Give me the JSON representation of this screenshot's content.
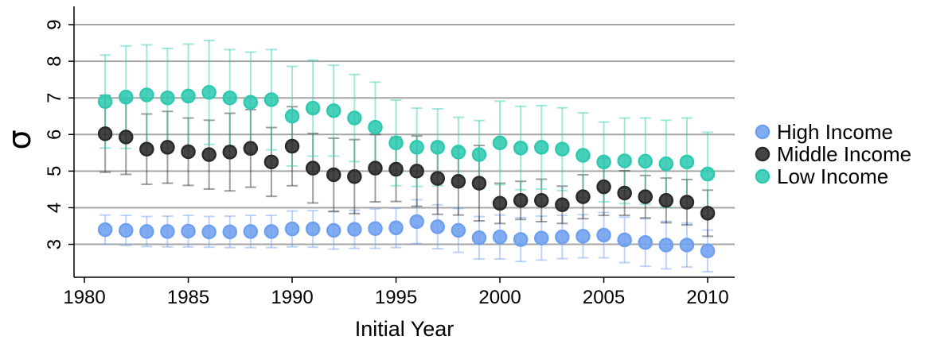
{
  "chart_data": {
    "type": "scatter",
    "xlabel": "Initial Year",
    "ylabel": "σ",
    "xlim": [
      1979.5,
      2011.3
    ],
    "ylim": [
      2.1,
      9.5
    ],
    "x_ticks": [
      1980,
      1985,
      1990,
      1995,
      2000,
      2005,
      2010
    ],
    "x_tick_labels": [
      "1980",
      "1985",
      "1990",
      "1995",
      "2000",
      "2005",
      "2010"
    ],
    "y_ticks": [
      3,
      4,
      5,
      6,
      7,
      8,
      9
    ],
    "y_tick_labels": [
      "3",
      "4",
      "5",
      "6",
      "7",
      "8",
      "9"
    ],
    "grid": "horizontal",
    "legend_position": "right",
    "error_bars": true,
    "series": [
      {
        "name": "High Income",
        "color": "#6fa0f0",
        "x": [
          1981,
          1982,
          1983,
          1984,
          1985,
          1986,
          1987,
          1988,
          1989,
          1990,
          1991,
          1992,
          1993,
          1994,
          1995,
          1996,
          1997,
          1998,
          1999,
          2000,
          2001,
          2002,
          2003,
          2004,
          2005,
          2006,
          2007,
          2008,
          2009,
          2010
        ],
        "y": [
          3.4,
          3.38,
          3.35,
          3.35,
          3.36,
          3.34,
          3.34,
          3.35,
          3.35,
          3.42,
          3.42,
          3.38,
          3.41,
          3.43,
          3.45,
          3.62,
          3.48,
          3.38,
          3.18,
          3.2,
          3.13,
          3.17,
          3.2,
          3.22,
          3.25,
          3.12,
          3.05,
          2.98,
          2.98,
          2.82
        ],
        "lower": [
          3.0,
          2.97,
          2.94,
          2.93,
          2.93,
          2.92,
          2.91,
          2.91,
          2.91,
          2.93,
          2.92,
          2.87,
          2.89,
          2.89,
          2.91,
          3.02,
          2.88,
          2.78,
          2.6,
          2.6,
          2.53,
          2.57,
          2.61,
          2.63,
          2.63,
          2.5,
          2.4,
          2.33,
          2.38,
          2.25
        ],
        "upper": [
          3.8,
          3.79,
          3.76,
          3.77,
          3.79,
          3.76,
          3.77,
          3.79,
          3.79,
          3.91,
          3.92,
          3.89,
          3.93,
          3.97,
          3.99,
          4.22,
          4.08,
          3.98,
          3.76,
          3.8,
          3.73,
          3.77,
          3.79,
          3.81,
          3.87,
          3.74,
          3.7,
          3.63,
          3.58,
          3.39
        ]
      },
      {
        "name": "Middle Income",
        "color": "#2b2b2b",
        "x": [
          1981,
          1982,
          1983,
          1984,
          1985,
          1986,
          1987,
          1988,
          1989,
          1990,
          1991,
          1992,
          1993,
          1994,
          1995,
          1996,
          1997,
          1998,
          1999,
          2000,
          2001,
          2002,
          2003,
          2004,
          2005,
          2006,
          2007,
          2008,
          2009,
          2010
        ],
        "y": [
          6.02,
          5.93,
          5.6,
          5.65,
          5.53,
          5.45,
          5.52,
          5.62,
          5.25,
          5.68,
          5.08,
          4.9,
          4.85,
          5.08,
          5.05,
          5.0,
          4.8,
          4.72,
          4.67,
          4.12,
          4.2,
          4.2,
          4.08,
          4.3,
          4.57,
          4.4,
          4.3,
          4.2,
          4.15,
          3.85
        ],
        "lower": [
          4.97,
          4.91,
          4.64,
          4.67,
          4.61,
          4.51,
          4.46,
          4.56,
          4.31,
          4.6,
          4.13,
          3.9,
          3.84,
          4.16,
          4.17,
          4.04,
          3.82,
          3.8,
          3.64,
          3.57,
          3.68,
          3.62,
          3.57,
          3.7,
          3.79,
          3.79,
          3.72,
          3.59,
          3.53,
          3.22
        ],
        "upper": [
          7.07,
          6.95,
          6.56,
          6.63,
          6.45,
          6.39,
          6.58,
          6.68,
          6.19,
          6.76,
          6.03,
          5.9,
          5.86,
          6.0,
          5.93,
          5.96,
          5.78,
          5.64,
          5.7,
          4.67,
          4.72,
          4.78,
          4.59,
          4.9,
          5.35,
          5.01,
          4.88,
          4.81,
          4.77,
          4.48
        ]
      },
      {
        "name": "Low Income",
        "color": "#2fc9b0",
        "x": [
          1981,
          1982,
          1983,
          1984,
          1985,
          1986,
          1987,
          1988,
          1989,
          1990,
          1991,
          1992,
          1993,
          1994,
          1995,
          1996,
          1997,
          1998,
          1999,
          2000,
          2001,
          2002,
          2003,
          2004,
          2005,
          2006,
          2007,
          2008,
          2009,
          2010
        ],
        "y": [
          6.9,
          7.02,
          7.08,
          7.0,
          7.05,
          7.15,
          7.0,
          6.88,
          6.95,
          6.5,
          6.72,
          6.65,
          6.45,
          6.2,
          5.77,
          5.65,
          5.65,
          5.52,
          5.45,
          5.77,
          5.63,
          5.65,
          5.6,
          5.43,
          5.25,
          5.28,
          5.27,
          5.2,
          5.25,
          4.92
        ],
        "lower": [
          5.63,
          5.62,
          5.71,
          5.65,
          5.63,
          5.73,
          5.68,
          5.51,
          5.58,
          5.14,
          5.41,
          5.41,
          5.26,
          4.97,
          4.6,
          4.58,
          4.6,
          4.57,
          4.52,
          4.63,
          4.49,
          4.51,
          4.47,
          4.27,
          4.16,
          4.11,
          4.09,
          4.01,
          4.05,
          3.78
        ],
        "upper": [
          8.17,
          8.42,
          8.45,
          8.35,
          8.47,
          8.57,
          8.32,
          8.25,
          8.32,
          7.86,
          8.03,
          7.89,
          7.64,
          7.43,
          6.94,
          6.72,
          6.7,
          6.47,
          6.38,
          6.91,
          6.77,
          6.79,
          6.73,
          6.59,
          6.34,
          6.45,
          6.45,
          6.39,
          6.45,
          6.06
        ]
      }
    ]
  }
}
